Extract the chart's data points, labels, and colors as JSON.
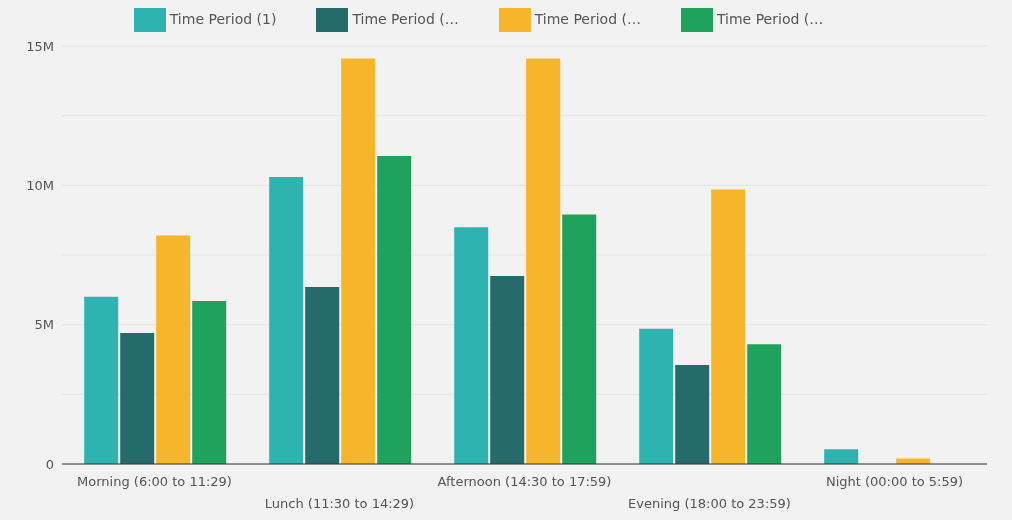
{
  "chart_data": {
    "type": "bar",
    "categories": [
      "Morning (6:00 to 11:29)",
      "Lunch (11:30 to 14:29)",
      "Afternoon (14:30 to 17:59)",
      "Evening (18:00 to 23:59)",
      "Night (00:00 to 5:59)"
    ],
    "series": [
      {
        "name": "Time Period (1)",
        "color": "#2fb3b0",
        "values": [
          6000000,
          10300000,
          8500000,
          4850000,
          530000
        ]
      },
      {
        "name": "Time Period (…",
        "color": "#266b6b",
        "values": [
          4700000,
          6350000,
          6750000,
          3550000,
          0
        ]
      },
      {
        "name": "Time Period (…",
        "color": "#f7b52c",
        "values": [
          8200000,
          14550000,
          14550000,
          9850000,
          200000
        ]
      },
      {
        "name": "Time Period (…",
        "color": "#1fa35c",
        "values": [
          5850000,
          11050000,
          8950000,
          4300000,
          0
        ]
      }
    ],
    "ylim": [
      0,
      15000000
    ],
    "yticks": [
      {
        "value": 0,
        "label": "0"
      },
      {
        "value": 2500000,
        "label": null
      },
      {
        "value": 5000000,
        "label": "5M"
      },
      {
        "value": 7500000,
        "label": null
      },
      {
        "value": 10000000,
        "label": "10M"
      },
      {
        "value": 12500000,
        "label": null
      },
      {
        "value": 15000000,
        "label": "15M"
      }
    ],
    "grid": "y",
    "legend": "top"
  }
}
